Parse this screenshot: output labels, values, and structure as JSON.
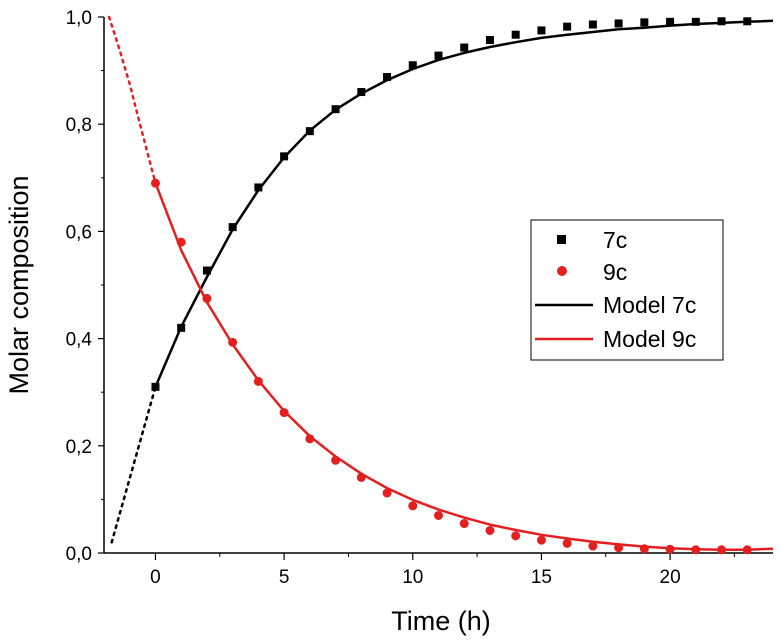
{
  "chart_data": {
    "type": "scatter",
    "title": "",
    "xlabel": "Time (h)",
    "ylabel": "Molar composition",
    "xlim": [
      -2,
      24
    ],
    "ylim": [
      0,
      1.0
    ],
    "xticks": [
      0,
      5,
      10,
      15,
      20
    ],
    "xtick_labels": [
      "0",
      "5",
      "10",
      "15",
      "20"
    ],
    "yticks": [
      0,
      0.2,
      0.4,
      0.6,
      0.8,
      1.0
    ],
    "ytick_labels": [
      "0,0",
      "0,2",
      "0,4",
      "0,6",
      "0,8",
      "1,0"
    ],
    "grid": false,
    "legend_position": "center-right",
    "series": [
      {
        "name": "7c",
        "kind": "points",
        "marker": "square",
        "color": "#000000",
        "x": [
          0,
          1,
          2,
          3,
          4,
          5,
          6,
          7,
          8,
          9,
          10,
          11,
          12,
          13,
          14,
          15,
          16,
          17,
          18,
          19,
          20,
          21,
          22,
          23
        ],
        "y": [
          0.31,
          0.42,
          0.527,
          0.608,
          0.682,
          0.74,
          0.787,
          0.828,
          0.86,
          0.888,
          0.91,
          0.928,
          0.943,
          0.957,
          0.967,
          0.975,
          0.982,
          0.986,
          0.988,
          0.99,
          0.991,
          0.991,
          0.992,
          0.992
        ]
      },
      {
        "name": "9c",
        "kind": "points",
        "marker": "circle",
        "color": "#e41f1f",
        "x": [
          0,
          1,
          2,
          3,
          4,
          5,
          6,
          7,
          8,
          9,
          10,
          11,
          12,
          13,
          14,
          15,
          16,
          17,
          18,
          19,
          20,
          21,
          22,
          23
        ],
        "y": [
          0.69,
          0.58,
          0.475,
          0.393,
          0.32,
          0.262,
          0.213,
          0.173,
          0.141,
          0.112,
          0.088,
          0.07,
          0.055,
          0.042,
          0.032,
          0.024,
          0.018,
          0.013,
          0.01,
          0.008,
          0.007,
          0.006,
          0.006,
          0.006
        ]
      },
      {
        "name": "Model 7c",
        "kind": "line",
        "color": "#000000",
        "x": [
          0,
          1,
          2,
          3,
          4,
          5,
          6,
          7,
          8,
          9,
          10,
          11,
          12,
          13,
          14,
          15,
          16,
          17,
          18,
          19,
          20,
          21,
          22,
          23,
          24
        ],
        "y": [
          0.31,
          0.422,
          0.515,
          0.604,
          0.677,
          0.738,
          0.788,
          0.827,
          0.857,
          0.882,
          0.903,
          0.92,
          0.933,
          0.944,
          0.953,
          0.961,
          0.967,
          0.972,
          0.977,
          0.98,
          0.984,
          0.987,
          0.989,
          0.991,
          0.993
        ]
      },
      {
        "name": "Model 9c",
        "kind": "line",
        "color": "#e41f1f",
        "x": [
          0,
          1,
          2,
          3,
          4,
          5,
          6,
          7,
          8,
          9,
          10,
          11,
          12,
          13,
          14,
          15,
          16,
          17,
          18,
          19,
          20,
          21,
          22,
          23,
          24
        ],
        "y": [
          0.69,
          0.565,
          0.468,
          0.389,
          0.322,
          0.265,
          0.218,
          0.18,
          0.148,
          0.121,
          0.099,
          0.081,
          0.066,
          0.053,
          0.043,
          0.034,
          0.027,
          0.021,
          0.016,
          0.012,
          0.009,
          0.007,
          0.006,
          0.006,
          0.008
        ]
      },
      {
        "name": "7c extrapolation",
        "kind": "dotted",
        "color": "#000000",
        "x": [
          -1.7,
          0
        ],
        "y": [
          0.02,
          0.31
        ]
      },
      {
        "name": "9c extrapolation",
        "kind": "dotted",
        "color": "#e41f1f",
        "x": [
          -1.8,
          -1.4,
          -1.0,
          -0.6,
          -0.3,
          0
        ],
        "y": [
          1.0,
          0.94,
          0.875,
          0.8,
          0.745,
          0.69
        ]
      }
    ],
    "legend_entries": [
      "7c",
      "9c",
      "Model 7c",
      "Model 9c"
    ]
  }
}
